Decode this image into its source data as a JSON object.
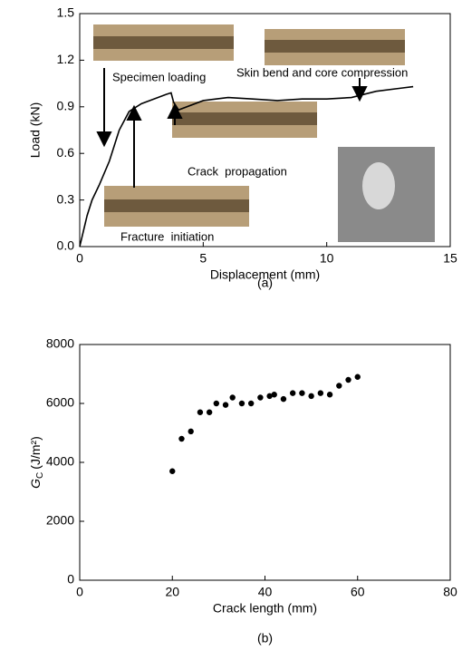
{
  "chart_data": [
    {
      "type": "line",
      "x_label": "Displacement (mm)",
      "y_label": "Load (kN)",
      "caption": "(a)",
      "xlim": [
        0,
        15
      ],
      "xticks": [
        0,
        5,
        10,
        15
      ],
      "ylim": [
        0,
        1.5
      ],
      "yticks": [
        {
          "value": 0,
          "label": "0.0"
        },
        0.3,
        0.6,
        0.9,
        1.2,
        1.5
      ],
      "color": "#000000",
      "x": [
        0,
        0.3,
        0.5,
        0.8,
        1.2,
        1.6,
        2,
        2.5,
        3,
        3.5,
        3.7,
        3.8,
        4,
        5,
        6,
        7,
        8,
        9,
        10,
        11,
        12,
        13,
        13.5
      ],
      "values": [
        0,
        0.2,
        0.3,
        0.4,
        0.55,
        0.75,
        0.87,
        0.92,
        0.95,
        0.98,
        0.99,
        0.93,
        0.88,
        0.94,
        0.96,
        0.95,
        0.94,
        0.95,
        0.95,
        0.96,
        1.0,
        1.02,
        1.03
      ],
      "annotations": [
        "Specimen loading",
        "Skin bend and core compression",
        "Crack  propagation",
        "Fracture  initiation"
      ]
    },
    {
      "type": "scatter",
      "x_label": "Crack length (mm)",
      "y_label": {
        "symbol": "G",
        "subscript": "C",
        "unit": "(J/m²)"
      },
      "caption": "(b)",
      "xlim": [
        0,
        80
      ],
      "xticks": [
        0,
        20,
        40,
        60,
        80
      ],
      "ylim": [
        0,
        8000
      ],
      "yticks": [
        0,
        2000,
        4000,
        6000,
        8000
      ],
      "color": "#000000",
      "x": [
        20,
        22,
        24,
        26,
        28,
        29.5,
        31.5,
        33,
        35,
        37,
        39,
        41,
        42,
        44,
        46,
        48,
        50,
        52,
        54,
        56,
        58,
        60
      ],
      "values": [
        3700,
        4800,
        5050,
        5700,
        5700,
        6000,
        5950,
        6200,
        6000,
        6000,
        6200,
        6250,
        6300,
        6150,
        6350,
        6350,
        6250,
        6350,
        6300,
        6600,
        6800,
        6900
      ]
    }
  ]
}
